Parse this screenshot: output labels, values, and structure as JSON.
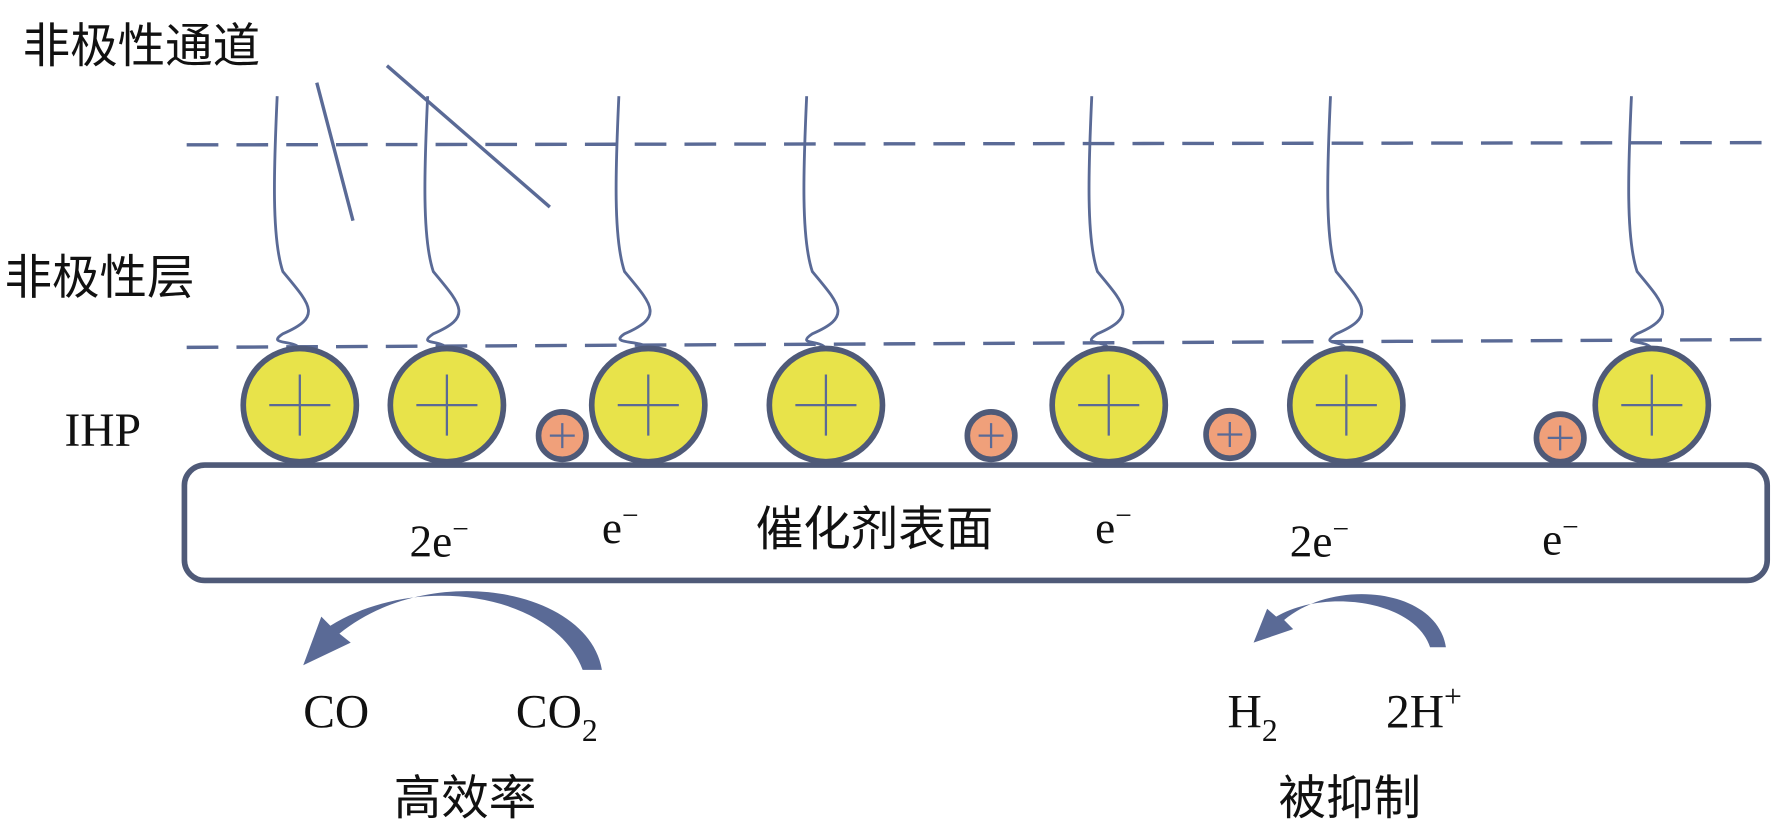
{
  "labels": {
    "nonpolar_channel": "非极性通道",
    "nonpolar_layer": "非极性层",
    "ihp": "IHP",
    "catalyst_surface": "催化剂表面",
    "high_efficiency": "高效率",
    "suppressed": "被抑制"
  },
  "electrons": [
    {
      "coef": "2",
      "sym": "e",
      "sup": "−"
    },
    {
      "coef": "",
      "sym": "e",
      "sup": "−"
    },
    {
      "coef": "",
      "sym": "e",
      "sup": "−"
    },
    {
      "coef": "2",
      "sym": "e",
      "sup": "−"
    },
    {
      "coef": "",
      "sym": "e",
      "sup": "−"
    }
  ],
  "reactions": {
    "co2_reduction": {
      "product": "CO",
      "reactant": "CO",
      "reactant_sub": "2"
    },
    "her": {
      "product": "H",
      "product_sub": "2",
      "reactant": "2H",
      "reactant_sup": "+"
    }
  },
  "colors": {
    "line": "#5a6a96",
    "outline": "#4f5a78",
    "large_cation": "#e8e34a",
    "small_cation": "#f0a07a"
  }
}
